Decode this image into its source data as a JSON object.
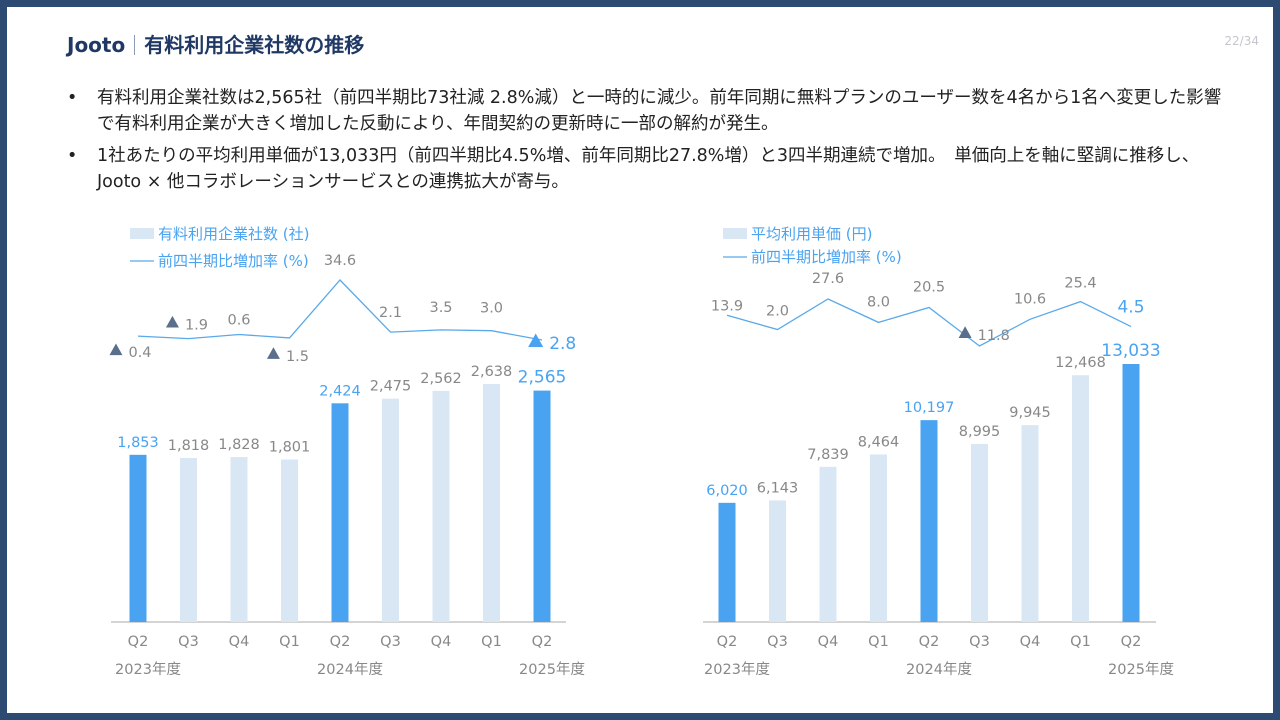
{
  "header": {
    "brand": "Jooto",
    "title": "有料利用企業社数の推移",
    "page": "22/34"
  },
  "bullets": [
    {
      "marker": "•",
      "text": "有料利用企業社数は2,565社（前四半期比73社減 2.8%減）と一時的に減少。前年同期に無料プランのユーザー数を4名から1名へ変更した影響で有料利用企業が大きく増加した反動により、年間契約の更新時に一部の解約が発生。"
    },
    {
      "marker": "•",
      "text": "1社あたりの平均利用単価が13,033円（前四半期比4.5%増、前年同期比27.8%増）と3四半期連続で増加。　単価向上を軸に堅調に推移し、Jooto × 他コラボレーションサービスとの連携拡大が寄与。"
    }
  ],
  "colors": {
    "bar_light": "#d9e7f5",
    "bar_accent": "#4aa3f0",
    "line": "#5aa9ea",
    "label_grey": "#888888",
    "label_accent": "#4aa3f0",
    "triangle_dark": "#5a6f8c",
    "axis": "#aaaaaa"
  },
  "chart_data": [
    {
      "type": "bar",
      "legend": [
        "有料利用企業社数 (社)",
        "前四半期比増加率 (%)"
      ],
      "categories": [
        "Q2",
        "Q3",
        "Q4",
        "Q1",
        "Q2",
        "Q3",
        "Q4",
        "Q1",
        "Q2"
      ],
      "year_labels": [
        "2023年度",
        "2024年度",
        "2025年度"
      ],
      "series": [
        {
          "name": "有料利用企業社数 (社)",
          "type": "bar",
          "values": [
            1853,
            1818,
            1828,
            1801,
            2424,
            2475,
            2562,
            2638,
            2565
          ],
          "labels": [
            "1,853",
            "1,818",
            "1,828",
            "1,801",
            "2,424",
            "2,475",
            "2,562",
            "2,638",
            "2,565"
          ],
          "highlight": [
            true,
            false,
            false,
            false,
            true,
            false,
            false,
            false,
            true
          ]
        },
        {
          "name": "前四半期比増加率 (%)",
          "type": "line",
          "values": [
            -0.4,
            -1.9,
            0.6,
            -1.5,
            34.6,
            2.1,
            3.5,
            3.0,
            -2.8
          ],
          "labels": [
            "0.4",
            "1.9",
            "0.6",
            "1.5",
            "34.6",
            "2.1",
            "3.5",
            "3.0",
            "2.8"
          ],
          "negative": [
            true,
            true,
            false,
            true,
            false,
            false,
            false,
            false,
            true
          ]
        }
      ]
    },
    {
      "type": "bar",
      "legend": [
        "平均利用単価 (円)",
        "前四半期比増加率 (%)"
      ],
      "categories": [
        "Q2",
        "Q3",
        "Q4",
        "Q1",
        "Q2",
        "Q3",
        "Q4",
        "Q1",
        "Q2"
      ],
      "year_labels": [
        "2023年度",
        "2024年度",
        "2025年度"
      ],
      "series": [
        {
          "name": "平均利用単価 (円)",
          "type": "bar",
          "values": [
            6020,
            6143,
            7839,
            8464,
            10197,
            8995,
            9945,
            12468,
            13033
          ],
          "labels": [
            "6,020",
            "6,143",
            "7,839",
            "8,464",
            "10,197",
            "8,995",
            "9,945",
            "12,468",
            "13,033"
          ],
          "highlight": [
            true,
            false,
            false,
            false,
            true,
            false,
            false,
            false,
            true
          ]
        },
        {
          "name": "前四半期比増加率 (%)",
          "type": "line",
          "values": [
            13.9,
            2.0,
            27.6,
            8.0,
            20.5,
            -11.8,
            10.6,
            25.4,
            4.5
          ],
          "labels": [
            "13.9",
            "2.0",
            "27.6",
            "8.0",
            "20.5",
            "11.8",
            "10.6",
            "25.4",
            "4.5"
          ],
          "negative": [
            false,
            false,
            false,
            false,
            false,
            true,
            false,
            false,
            false
          ]
        }
      ]
    }
  ]
}
